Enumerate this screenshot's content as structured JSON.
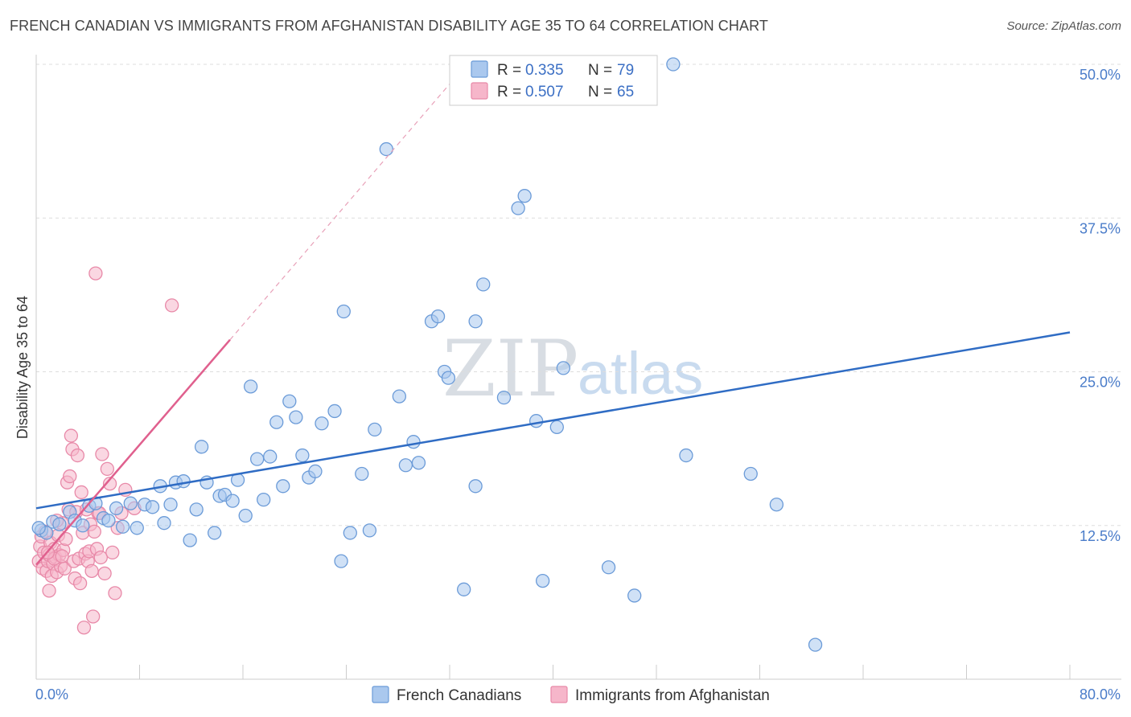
{
  "title": "FRENCH CANADIAN VS IMMIGRANTS FROM AFGHANISTAN DISABILITY AGE 35 TO 64 CORRELATION CHART",
  "source": "Source: ZipAtlas.com",
  "watermark": {
    "zip": "ZIP",
    "atlas": "atlas"
  },
  "colors": {
    "blue_fill": "#aac8ee",
    "blue_stroke": "#6b9bd8",
    "blue_line": "#2f6cc4",
    "pink_fill": "#f6b6ca",
    "pink_stroke": "#e889a8",
    "pink_line": "#e0608e",
    "grid": "#dddddd",
    "tick": "#4a7cc9"
  },
  "legend": {
    "rows": [
      {
        "r_label": "R =",
        "r_value": "0.335",
        "n_label": "N =",
        "n_value": "79"
      },
      {
        "r_label": "R =",
        "r_value": "0.507",
        "n_label": "N =",
        "n_value": "65"
      }
    ]
  },
  "chart_data": {
    "type": "scatter",
    "title": "FRENCH CANADIAN VS IMMIGRANTS FROM AFGHANISTAN DISABILITY AGE 35 TO 64 CORRELATION CHART",
    "xlabel": "",
    "ylabel": "Disability Age 35 to 64",
    "xlim": [
      0,
      80
    ],
    "ylim": [
      0,
      50
    ],
    "x_tick_labels": [
      "0.0%",
      "80.0%"
    ],
    "y_ticks": [
      12.5,
      25.0,
      37.5,
      50.0
    ],
    "y_tick_labels": [
      "12.5%",
      "25.0%",
      "37.5%",
      "50.0%"
    ],
    "grid": true,
    "legend_position": "top-center",
    "series": [
      {
        "name": "French Canadians",
        "color": "#aac8ee",
        "trend": {
          "x0": 0,
          "y0": 13.9,
          "x1": 80,
          "y1": 28.2,
          "style": "solid"
        },
        "points": [
          [
            0.4,
            12.1
          ],
          [
            0.8,
            11.9
          ],
          [
            1.3,
            12.8
          ],
          [
            1.8,
            12.6
          ],
          [
            2.6,
            13.6
          ],
          [
            3.0,
            12.9
          ],
          [
            3.6,
            12.5
          ],
          [
            4.1,
            14.1
          ],
          [
            4.6,
            14.3
          ],
          [
            5.2,
            13.1
          ],
          [
            5.6,
            12.9
          ],
          [
            6.2,
            13.9
          ],
          [
            6.7,
            12.4
          ],
          [
            7.3,
            14.3
          ],
          [
            7.8,
            12.3
          ],
          [
            8.4,
            14.2
          ],
          [
            9.0,
            14.0
          ],
          [
            9.6,
            15.7
          ],
          [
            9.9,
            12.7
          ],
          [
            10.4,
            14.2
          ],
          [
            10.8,
            16.0
          ],
          [
            11.4,
            16.1
          ],
          [
            11.9,
            11.3
          ],
          [
            12.4,
            13.8
          ],
          [
            12.8,
            18.9
          ],
          [
            13.2,
            16.0
          ],
          [
            13.8,
            11.9
          ],
          [
            14.2,
            14.9
          ],
          [
            14.6,
            15.0
          ],
          [
            15.2,
            14.5
          ],
          [
            15.6,
            16.2
          ],
          [
            16.2,
            13.3
          ],
          [
            16.6,
            23.8
          ],
          [
            17.1,
            17.9
          ],
          [
            17.6,
            14.6
          ],
          [
            18.1,
            18.1
          ],
          [
            18.6,
            20.9
          ],
          [
            19.1,
            15.7
          ],
          [
            19.6,
            22.6
          ],
          [
            20.1,
            21.3
          ],
          [
            20.6,
            18.2
          ],
          [
            21.1,
            16.4
          ],
          [
            21.6,
            16.9
          ],
          [
            22.1,
            20.8
          ],
          [
            23.1,
            21.8
          ],
          [
            23.6,
            9.6
          ],
          [
            23.8,
            29.9
          ],
          [
            24.3,
            11.9
          ],
          [
            25.2,
            16.7
          ],
          [
            25.8,
            12.1
          ],
          [
            26.2,
            20.3
          ],
          [
            27.1,
            43.1
          ],
          [
            28.1,
            23.0
          ],
          [
            28.6,
            17.4
          ],
          [
            29.2,
            19.3
          ],
          [
            29.6,
            17.6
          ],
          [
            30.6,
            29.1
          ],
          [
            31.6,
            25.0
          ],
          [
            31.1,
            29.5
          ],
          [
            31.9,
            24.5
          ],
          [
            33.1,
            7.3
          ],
          [
            34.0,
            15.7
          ],
          [
            34.0,
            29.1
          ],
          [
            34.6,
            32.1
          ],
          [
            36.2,
            22.9
          ],
          [
            37.3,
            38.3
          ],
          [
            37.8,
            39.3
          ],
          [
            38.7,
            21.0
          ],
          [
            39.2,
            8.0
          ],
          [
            40.3,
            20.5
          ],
          [
            40.8,
            25.3
          ],
          [
            44.3,
            9.1
          ],
          [
            46.3,
            6.8
          ],
          [
            49.3,
            50.0
          ],
          [
            50.3,
            18.2
          ],
          [
            55.3,
            16.7
          ],
          [
            57.3,
            14.2
          ],
          [
            60.3,
            2.8
          ],
          [
            0.2,
            12.3
          ]
        ]
      },
      {
        "name": "Immigrants from Afghanistan",
        "color": "#f6b6ca",
        "trend": {
          "x0": 0,
          "y0": 9.3,
          "x1": 15.0,
          "y1": 27.6,
          "dashed_to": {
            "x": 32.0,
            "y": 48.4
          },
          "style": "solid-then-dashed"
        },
        "points": [
          [
            0.2,
            9.6
          ],
          [
            0.3,
            10.8
          ],
          [
            0.4,
            11.6
          ],
          [
            0.5,
            9.0
          ],
          [
            0.6,
            10.3
          ],
          [
            0.7,
            12.0
          ],
          [
            0.8,
            8.8
          ],
          [
            0.9,
            9.6
          ],
          [
            1.0,
            10.1
          ],
          [
            1.1,
            11.1
          ],
          [
            1.2,
            8.4
          ],
          [
            1.3,
            9.4
          ],
          [
            1.4,
            10.6
          ],
          [
            1.5,
            9.9
          ],
          [
            1.6,
            8.7
          ],
          [
            1.7,
            11.7
          ],
          [
            1.8,
            10.1
          ],
          [
            1.9,
            9.2
          ],
          [
            2.0,
            12.7
          ],
          [
            2.1,
            10.5
          ],
          [
            2.2,
            9.0
          ],
          [
            2.3,
            11.4
          ],
          [
            2.4,
            16.0
          ],
          [
            2.5,
            13.8
          ],
          [
            2.6,
            16.5
          ],
          [
            2.7,
            19.8
          ],
          [
            2.8,
            18.7
          ],
          [
            2.9,
            9.6
          ],
          [
            3.0,
            8.2
          ],
          [
            3.1,
            13.6
          ],
          [
            3.2,
            18.2
          ],
          [
            3.3,
            9.8
          ],
          [
            3.4,
            7.8
          ],
          [
            3.5,
            15.2
          ],
          [
            3.6,
            11.9
          ],
          [
            3.7,
            4.2
          ],
          [
            3.8,
            10.2
          ],
          [
            3.9,
            13.8
          ],
          [
            4.0,
            9.6
          ],
          [
            4.1,
            10.4
          ],
          [
            4.2,
            12.6
          ],
          [
            4.3,
            8.8
          ],
          [
            4.4,
            5.1
          ],
          [
            4.5,
            12.0
          ],
          [
            4.6,
            33.0
          ],
          [
            4.7,
            10.6
          ],
          [
            4.8,
            13.5
          ],
          [
            4.9,
            13.5
          ],
          [
            5.0,
            9.9
          ],
          [
            5.1,
            18.3
          ],
          [
            5.3,
            8.6
          ],
          [
            5.5,
            17.1
          ],
          [
            5.7,
            15.9
          ],
          [
            5.9,
            10.3
          ],
          [
            6.1,
            7.0
          ],
          [
            6.3,
            12.3
          ],
          [
            6.6,
            13.5
          ],
          [
            6.9,
            15.4
          ],
          [
            7.6,
            13.9
          ],
          [
            10.5,
            30.4
          ],
          [
            1.0,
            7.2
          ],
          [
            1.4,
            9.8
          ],
          [
            2.0,
            10.0
          ],
          [
            1.6,
            12.9
          ],
          [
            0.9,
            10.3
          ]
        ]
      }
    ]
  },
  "bottom_legend": [
    {
      "label": "French Canadians"
    },
    {
      "label": "Immigrants from Afghanistan"
    }
  ]
}
